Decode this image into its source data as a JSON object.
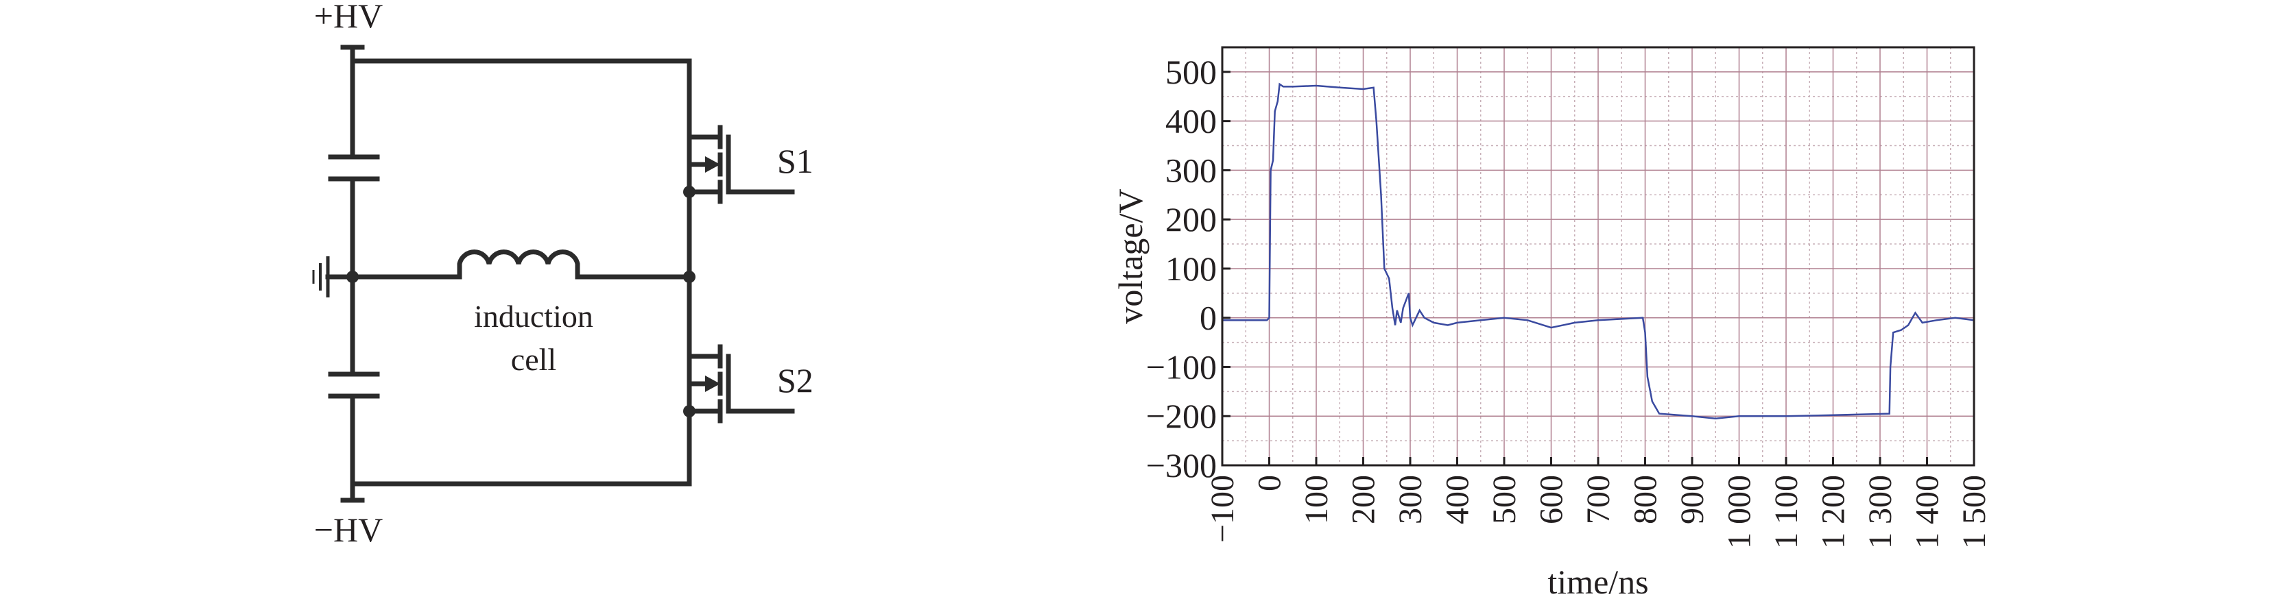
{
  "circuit": {
    "plus_hv": "+HV",
    "minus_hv": "−HV",
    "inductor_label_line1": "induction",
    "inductor_label_line2": "cell",
    "switch1": "S1",
    "switch2": "S2"
  },
  "chart_data": {
    "type": "line",
    "xlabel": "time/ns",
    "ylabel": "voltage/V",
    "xlim": [
      -100,
      1500
    ],
    "ylim": [
      -300,
      550
    ],
    "x_ticks": [
      -100,
      0,
      100,
      200,
      300,
      400,
      500,
      600,
      700,
      800,
      900,
      1000,
      1100,
      1200,
      1300,
      1400,
      1500
    ],
    "x_tick_labels": [
      "−100",
      "0",
      "100",
      "200",
      "300",
      "400",
      "500",
      "600",
      "700",
      "800",
      "900",
      "1 000",
      "1 100",
      "1 200",
      "1 300",
      "1 400",
      "1 500"
    ],
    "y_ticks": [
      500,
      400,
      300,
      200,
      100,
      0,
      -100,
      -200,
      -300
    ],
    "y_tick_labels": [
      "500",
      "400",
      "300",
      "200",
      "100",
      "0",
      "−100",
      "−200",
      "−300"
    ],
    "grid": true,
    "colors": {
      "series": "#3a4aa0",
      "grid_major": "#b08090",
      "grid_minor": "#c8b0b8"
    },
    "series": [
      {
        "x": [
          -100,
          -50,
          -5,
          0,
          3,
          8,
          12,
          18,
          22,
          30,
          50,
          100,
          150,
          200,
          222,
          228,
          238,
          245,
          255,
          262,
          268,
          272,
          280,
          285,
          297,
          300,
          305,
          320,
          330,
          350,
          380,
          400,
          450,
          500,
          550,
          600,
          650,
          700,
          795,
          800,
          805,
          815,
          830,
          900,
          950,
          1000,
          1100,
          1200,
          1320,
          1322,
          1328,
          1345,
          1360,
          1375,
          1390,
          1420,
          1460,
          1500
        ],
        "y": [
          -5,
          -5,
          -5,
          0,
          300,
          320,
          420,
          440,
          475,
          470,
          470,
          472,
          468,
          465,
          468,
          400,
          250,
          100,
          80,
          20,
          -15,
          15,
          -10,
          20,
          50,
          0,
          -15,
          15,
          0,
          -10,
          -15,
          -10,
          -5,
          0,
          -5,
          -20,
          -10,
          -5,
          0,
          -30,
          -120,
          -170,
          -195,
          -200,
          -205,
          -200,
          -200,
          -198,
          -195,
          -100,
          -30,
          -25,
          -15,
          10,
          -10,
          -5,
          0,
          -5
        ]
      }
    ]
  }
}
